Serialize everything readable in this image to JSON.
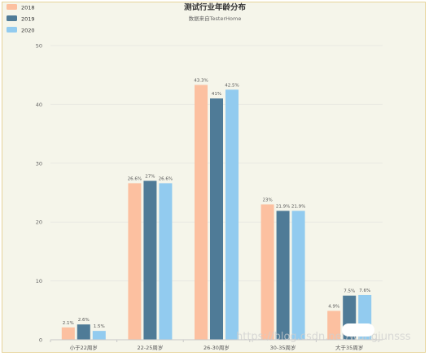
{
  "chart_data": {
    "type": "bar",
    "title": "测试行业年龄分布",
    "subtitle": "数据来自TesterHome",
    "categories": [
      "小于22周岁",
      "22-25周岁",
      "26-30周岁",
      "30-35周岁",
      "大于35周岁"
    ],
    "series": [
      {
        "name": "2018",
        "values": [
          2.1,
          26.6,
          43.3,
          23,
          4.9
        ],
        "labels": [
          "2.1%",
          "26.6%",
          "43.3%",
          "23%",
          "4.9%"
        ],
        "color": "#fcc0a0"
      },
      {
        "name": "2019",
        "values": [
          2.6,
          27,
          41,
          21.9,
          7.5
        ],
        "labels": [
          "2.6%",
          "27%",
          "41%",
          "21.9%",
          "7.5%"
        ],
        "color": "#4f7b97"
      },
      {
        "name": "2020",
        "values": [
          1.5,
          26.6,
          42.5,
          21.9,
          7.6
        ],
        "labels": [
          "1.5%",
          "26.6%",
          "42.5%",
          "21.9%",
          "7.6%"
        ],
        "color": "#92cbef"
      }
    ],
    "yticks": [
      0,
      10,
      20,
      30,
      40,
      50
    ],
    "ylim": [
      0,
      50
    ],
    "grid": true,
    "legend": "top-left",
    "watermark": "https://blog.csdn.net/wangjunsss"
  }
}
